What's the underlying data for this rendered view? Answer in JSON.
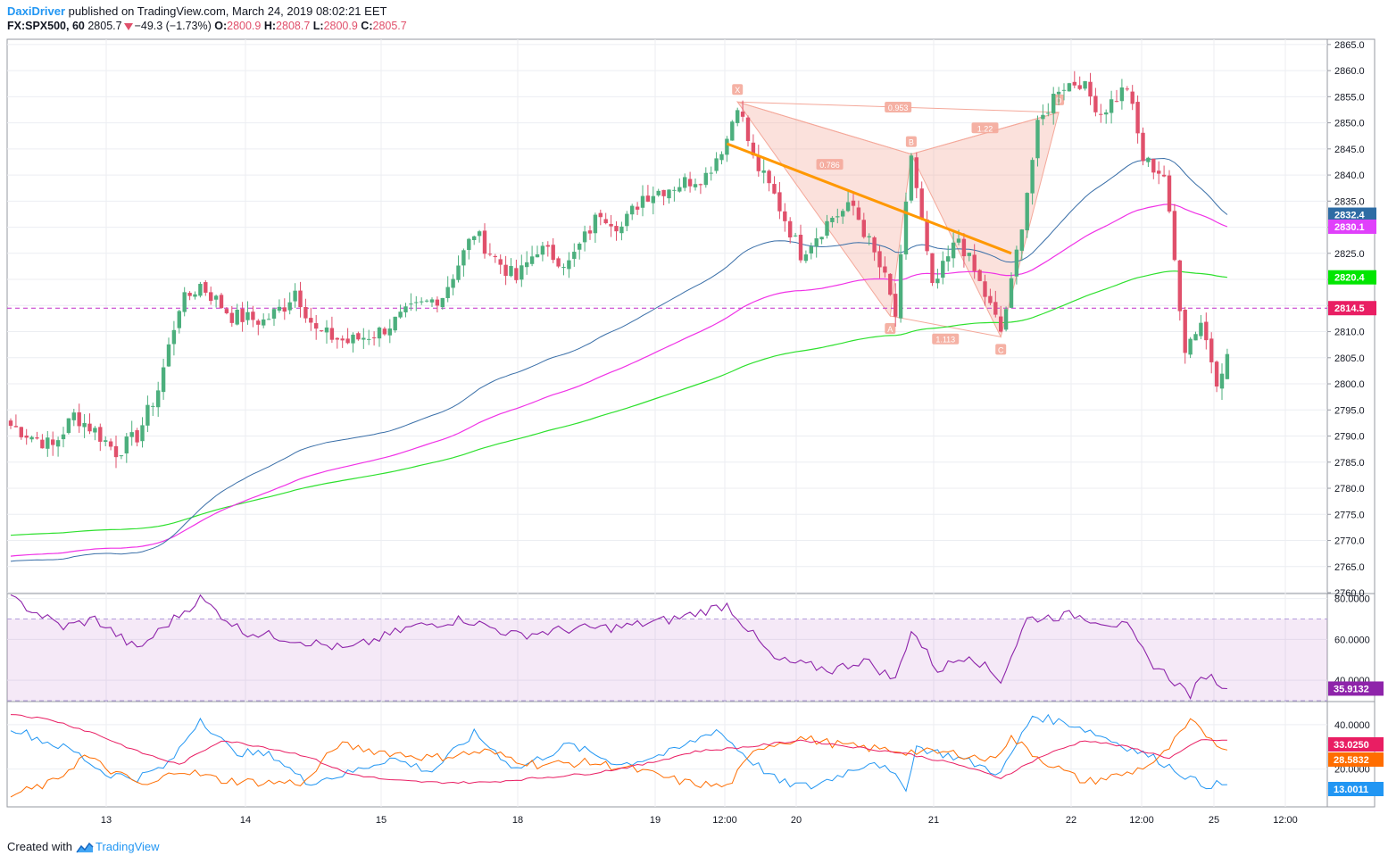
{
  "header": {
    "author": "DaxiDriver",
    "published_text": "published on TradingView.com, March 24, 2019 08:02:21 EET",
    "symbol": "FX:SPX500, 60",
    "price": "2805.7",
    "change": "−49.3 (−1.73%)",
    "o_label": "O:",
    "o_value": "2800.9",
    "h_label": "H:",
    "h_value": "2808.7",
    "l_label": "L:",
    "l_value": "2800.9",
    "c_label": "C:",
    "c_value": "2805.7"
  },
  "footer": {
    "created_with": "Created with",
    "brand": "TradingView"
  },
  "colors": {
    "up": "#4caf7d",
    "down": "#e0506b",
    "ema_blue": "#3a6fa8",
    "ema_magenta": "#f032e6",
    "ema_green": "#2ee02e",
    "trend": "#ff9800",
    "pattern": "#f4a89a",
    "rsi": "#8e24aa",
    "dmi_blue": "#2196f3",
    "dmi_orange": "#ff6d00",
    "dmi_pink": "#e91e63",
    "hline": "#c2185b"
  },
  "chart_data": [
    {
      "type": "candlestick",
      "title": "FX:SPX500, 60",
      "ylim": [
        2760,
        2866
      ],
      "y_ticks": [
        "2865.0",
        "2860.0",
        "2855.0",
        "2850.0",
        "2845.0",
        "2840.0",
        "2835.0",
        "2830.0",
        "2825.0",
        "2820.0",
        "2815.0",
        "2810.0",
        "2805.0",
        "2800.0",
        "2795.0",
        "2790.0",
        "2785.0",
        "2780.0",
        "2775.0",
        "2770.0",
        "2765.0",
        "2760.0"
      ],
      "x_ticks": [
        "13",
        "13",
        "14",
        "15",
        "18",
        "19",
        "12:00",
        "20",
        "21",
        "22",
        "12:00",
        "25",
        "12:00"
      ],
      "candle_anchors": [
        {
          "bar": 0,
          "close": 2792
        },
        {
          "bar": 8,
          "close": 2788
        },
        {
          "bar": 12,
          "close": 2794
        },
        {
          "bar": 16,
          "close": 2791
        },
        {
          "bar": 20,
          "close": 2787
        },
        {
          "bar": 24,
          "close": 2790
        },
        {
          "bar": 28,
          "close": 2799
        },
        {
          "bar": 32,
          "close": 2815
        },
        {
          "bar": 36,
          "close": 2819
        },
        {
          "bar": 42,
          "close": 2813
        },
        {
          "bar": 48,
          "close": 2812
        },
        {
          "bar": 52,
          "close": 2815
        },
        {
          "bar": 54,
          "close": 2818
        },
        {
          "bar": 58,
          "close": 2810
        },
        {
          "bar": 64,
          "close": 2808
        },
        {
          "bar": 70,
          "close": 2810
        },
        {
          "bar": 76,
          "close": 2814
        },
        {
          "bar": 82,
          "close": 2817
        },
        {
          "bar": 88,
          "close": 2829
        },
        {
          "bar": 92,
          "close": 2824
        },
        {
          "bar": 96,
          "close": 2820
        },
        {
          "bar": 100,
          "close": 2826
        },
        {
          "bar": 106,
          "close": 2823
        },
        {
          "bar": 112,
          "close": 2833
        },
        {
          "bar": 116,
          "close": 2830
        },
        {
          "bar": 120,
          "close": 2836
        },
        {
          "bar": 126,
          "close": 2838
        },
        {
          "bar": 132,
          "close": 2840
        },
        {
          "bar": 136,
          "close": 2847
        },
        {
          "bar": 138,
          "close": 2854
        },
        {
          "bar": 141,
          "close": 2843
        },
        {
          "bar": 145,
          "close": 2836
        },
        {
          "bar": 150,
          "close": 2825
        },
        {
          "bar": 156,
          "close": 2832
        },
        {
          "bar": 160,
          "close": 2834
        },
        {
          "bar": 166,
          "close": 2820
        },
        {
          "bar": 168,
          "close": 2813
        },
        {
          "bar": 171,
          "close": 2844
        },
        {
          "bar": 175,
          "close": 2818
        },
        {
          "bar": 180,
          "close": 2828
        },
        {
          "bar": 185,
          "close": 2817
        },
        {
          "bar": 188,
          "close": 2810
        },
        {
          "bar": 190,
          "close": 2819
        },
        {
          "bar": 192,
          "close": 2831
        },
        {
          "bar": 195,
          "close": 2849
        },
        {
          "bar": 199,
          "close": 2857
        },
        {
          "bar": 203,
          "close": 2858
        },
        {
          "bar": 207,
          "close": 2852
        },
        {
          "bar": 212,
          "close": 2857
        },
        {
          "bar": 215,
          "close": 2843
        },
        {
          "bar": 219,
          "close": 2840
        },
        {
          "bar": 223,
          "close": 2807
        },
        {
          "bar": 226,
          "close": 2812
        },
        {
          "bar": 229,
          "close": 2801
        },
        {
          "bar": 231,
          "close": 2805.7
        }
      ],
      "bars": 232,
      "ema_blue_last": 2832.4,
      "ema_magenta_last": 2830.1,
      "ema_green_last": 2820.4,
      "hline": 2814.5,
      "price_labels": [
        {
          "value": "2832.4",
          "color": "#2e6ca4"
        },
        {
          "value": "2830.1",
          "color": "#e040fb"
        },
        {
          "value": "2820.4",
          "color": "#00e600"
        },
        {
          "value": "2814.5",
          "color": "#e91e63"
        }
      ],
      "pattern": {
        "points": [
          {
            "label": "X",
            "bar": 138,
            "value": 2854
          },
          {
            "label": "A",
            "bar": 167,
            "value": 2813
          },
          {
            "label": "B",
            "bar": 171,
            "value": 2844
          },
          {
            "label": "C",
            "bar": 188,
            "value": 2809
          },
          {
            "label": "D",
            "bar": 199,
            "value": 2852
          }
        ],
        "ratios": [
          "0.953",
          "0.786",
          "1.22",
          "1.113"
        ]
      },
      "trendline": [
        {
          "bar": 136,
          "value": 2846
        },
        {
          "bar": 190,
          "value": 2825
        }
      ]
    },
    {
      "type": "line",
      "title": "RSI",
      "ylim": [
        30,
        82
      ],
      "y_ticks": [
        "80.0000",
        "60.0000",
        "40.0000"
      ],
      "bands": [
        70,
        30
      ],
      "last": 35.9132,
      "last_label": "35.9132",
      "anchors": [
        {
          "bar": 0,
          "value": 80
        },
        {
          "bar": 10,
          "value": 66
        },
        {
          "bar": 16,
          "value": 70
        },
        {
          "bar": 24,
          "value": 55
        },
        {
          "bar": 30,
          "value": 68
        },
        {
          "bar": 36,
          "value": 80
        },
        {
          "bar": 44,
          "value": 64
        },
        {
          "bar": 54,
          "value": 60
        },
        {
          "bar": 64,
          "value": 55
        },
        {
          "bar": 76,
          "value": 66
        },
        {
          "bar": 86,
          "value": 70
        },
        {
          "bar": 96,
          "value": 62
        },
        {
          "bar": 106,
          "value": 65
        },
        {
          "bar": 116,
          "value": 66
        },
        {
          "bar": 126,
          "value": 70
        },
        {
          "bar": 136,
          "value": 77
        },
        {
          "bar": 145,
          "value": 50
        },
        {
          "bar": 156,
          "value": 45
        },
        {
          "bar": 162,
          "value": 50
        },
        {
          "bar": 168,
          "value": 40
        },
        {
          "bar": 171,
          "value": 65
        },
        {
          "bar": 176,
          "value": 45
        },
        {
          "bar": 182,
          "value": 53
        },
        {
          "bar": 188,
          "value": 40
        },
        {
          "bar": 193,
          "value": 70
        },
        {
          "bar": 202,
          "value": 72
        },
        {
          "bar": 212,
          "value": 66
        },
        {
          "bar": 216,
          "value": 50
        },
        {
          "bar": 224,
          "value": 33
        },
        {
          "bar": 227,
          "value": 43
        },
        {
          "bar": 231,
          "value": 35.9
        }
      ]
    },
    {
      "type": "line",
      "title": "DMI",
      "ylim": [
        3,
        50
      ],
      "y_ticks": [
        "40.0000",
        "20.0000"
      ],
      "series": [
        {
          "color": "#2196f3",
          "last": 13.0011,
          "last_label": "13.0011",
          "anchors": [
            {
              "bar": 0,
              "value": 39
            },
            {
              "bar": 6,
              "value": 33
            },
            {
              "bar": 12,
              "value": 28
            },
            {
              "bar": 18,
              "value": 18
            },
            {
              "bar": 24,
              "value": 16
            },
            {
              "bar": 30,
              "value": 22
            },
            {
              "bar": 36,
              "value": 43
            },
            {
              "bar": 42,
              "value": 28
            },
            {
              "bar": 50,
              "value": 26
            },
            {
              "bar": 56,
              "value": 14
            },
            {
              "bar": 64,
              "value": 18
            },
            {
              "bar": 72,
              "value": 25
            },
            {
              "bar": 80,
              "value": 19
            },
            {
              "bar": 88,
              "value": 36
            },
            {
              "bar": 96,
              "value": 20
            },
            {
              "bar": 106,
              "value": 31
            },
            {
              "bar": 116,
              "value": 22
            },
            {
              "bar": 126,
              "value": 28
            },
            {
              "bar": 134,
              "value": 38
            },
            {
              "bar": 140,
              "value": 25
            },
            {
              "bar": 146,
              "value": 14
            },
            {
              "bar": 152,
              "value": 12
            },
            {
              "bar": 158,
              "value": 18
            },
            {
              "bar": 164,
              "value": 24
            },
            {
              "bar": 170,
              "value": 12
            },
            {
              "bar": 172,
              "value": 30
            },
            {
              "bar": 180,
              "value": 25
            },
            {
              "bar": 188,
              "value": 18
            },
            {
              "bar": 194,
              "value": 44
            },
            {
              "bar": 202,
              "value": 40
            },
            {
              "bar": 210,
              "value": 32
            },
            {
              "bar": 218,
              "value": 24
            },
            {
              "bar": 226,
              "value": 13
            },
            {
              "bar": 231,
              "value": 13
            }
          ]
        },
        {
          "color": "#ff6d00",
          "last": 28.5832,
          "last_label": "28.5832",
          "anchors": [
            {
              "bar": 0,
              "value": 8
            },
            {
              "bar": 8,
              "value": 14
            },
            {
              "bar": 14,
              "value": 26
            },
            {
              "bar": 20,
              "value": 18
            },
            {
              "bar": 26,
              "value": 12
            },
            {
              "bar": 32,
              "value": 20
            },
            {
              "bar": 40,
              "value": 15
            },
            {
              "bar": 48,
              "value": 14
            },
            {
              "bar": 56,
              "value": 14
            },
            {
              "bar": 62,
              "value": 31
            },
            {
              "bar": 70,
              "value": 28
            },
            {
              "bar": 80,
              "value": 25
            },
            {
              "bar": 90,
              "value": 28
            },
            {
              "bar": 100,
              "value": 22
            },
            {
              "bar": 110,
              "value": 23
            },
            {
              "bar": 118,
              "value": 20
            },
            {
              "bar": 128,
              "value": 14
            },
            {
              "bar": 136,
              "value": 12
            },
            {
              "bar": 142,
              "value": 30
            },
            {
              "bar": 150,
              "value": 34
            },
            {
              "bar": 160,
              "value": 30
            },
            {
              "bar": 170,
              "value": 28
            },
            {
              "bar": 180,
              "value": 27
            },
            {
              "bar": 186,
              "value": 24
            },
            {
              "bar": 190,
              "value": 34
            },
            {
              "bar": 196,
              "value": 24
            },
            {
              "bar": 204,
              "value": 14
            },
            {
              "bar": 212,
              "value": 18
            },
            {
              "bar": 218,
              "value": 24
            },
            {
              "bar": 224,
              "value": 41
            },
            {
              "bar": 231,
              "value": 28.6
            }
          ]
        },
        {
          "color": "#e91e63",
          "last": 33.025,
          "last_label": "33.0250",
          "anchors": [
            {
              "bar": 0,
              "value": 45
            },
            {
              "bar": 8,
              "value": 42
            },
            {
              "bar": 16,
              "value": 36
            },
            {
              "bar": 24,
              "value": 28
            },
            {
              "bar": 32,
              "value": 22
            },
            {
              "bar": 40,
              "value": 33
            },
            {
              "bar": 48,
              "value": 30
            },
            {
              "bar": 56,
              "value": 26
            },
            {
              "bar": 64,
              "value": 18
            },
            {
              "bar": 72,
              "value": 15
            },
            {
              "bar": 80,
              "value": 14
            },
            {
              "bar": 90,
              "value": 14
            },
            {
              "bar": 100,
              "value": 16
            },
            {
              "bar": 110,
              "value": 18
            },
            {
              "bar": 120,
              "value": 22
            },
            {
              "bar": 130,
              "value": 28
            },
            {
              "bar": 140,
              "value": 30
            },
            {
              "bar": 150,
              "value": 33
            },
            {
              "bar": 160,
              "value": 30
            },
            {
              "bar": 170,
              "value": 27
            },
            {
              "bar": 180,
              "value": 22
            },
            {
              "bar": 188,
              "value": 16
            },
            {
              "bar": 196,
              "value": 26
            },
            {
              "bar": 204,
              "value": 33
            },
            {
              "bar": 212,
              "value": 30
            },
            {
              "bar": 220,
              "value": 25
            },
            {
              "bar": 226,
              "value": 33
            },
            {
              "bar": 231,
              "value": 33
            }
          ]
        }
      ]
    }
  ]
}
